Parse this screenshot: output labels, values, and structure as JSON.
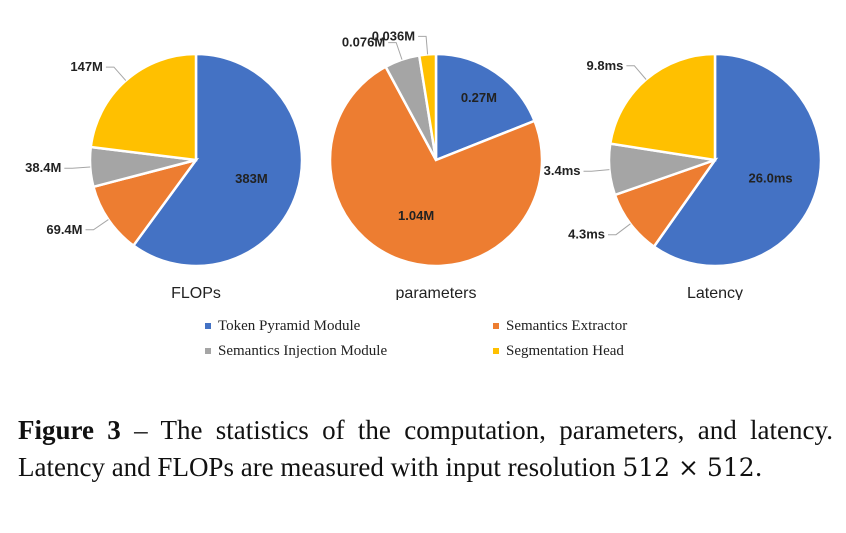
{
  "chart_data": [
    {
      "type": "pie",
      "title": "FLOPs",
      "labels": [
        "Token Pyramid Module",
        "Semantics Extractor",
        "Semantics Injection Module",
        "Segmentation Head"
      ],
      "values": [
        383,
        69.4,
        38.4,
        147
      ],
      "value_labels": [
        "383M",
        "69.4M",
        "38.4M",
        "147M"
      ],
      "unit": "M"
    },
    {
      "type": "pie",
      "title": "parameters",
      "labels": [
        "Token Pyramid Module",
        "Semantics Extractor",
        "Semantics Injection Module",
        "Segmentation Head"
      ],
      "values": [
        0.27,
        1.04,
        0.076,
        0.036
      ],
      "value_labels": [
        "0.27M",
        "1.04M",
        "0.076M",
        "0.036M"
      ],
      "unit": "M"
    },
    {
      "type": "pie",
      "title": "Latency",
      "labels": [
        "Token Pyramid Module",
        "Semantics Extractor",
        "Semantics Injection Module",
        "Segmentation Head"
      ],
      "values": [
        26.0,
        4.3,
        3.4,
        9.8
      ],
      "value_labels": [
        "26.0ms",
        "4.3ms",
        "3.4ms",
        "9.8ms"
      ],
      "unit": "ms"
    }
  ],
  "legend": {
    "position": "bottom",
    "items": [
      {
        "label": "Token Pyramid Module",
        "color": "#4472c4"
      },
      {
        "label": "Semantics Extractor",
        "color": "#ed7d31"
      },
      {
        "label": "Semantics Injection Module",
        "color": "#a5a5a5"
      },
      {
        "label": "Segmentation Head",
        "color": "#ffc000"
      }
    ]
  },
  "caption": {
    "label": "Figure 3",
    "dash": "–",
    "text": "The statistics of the computation, parameters, and latency. Latency and FLOPs are measured with input resolution",
    "math": "512 × 512."
  }
}
